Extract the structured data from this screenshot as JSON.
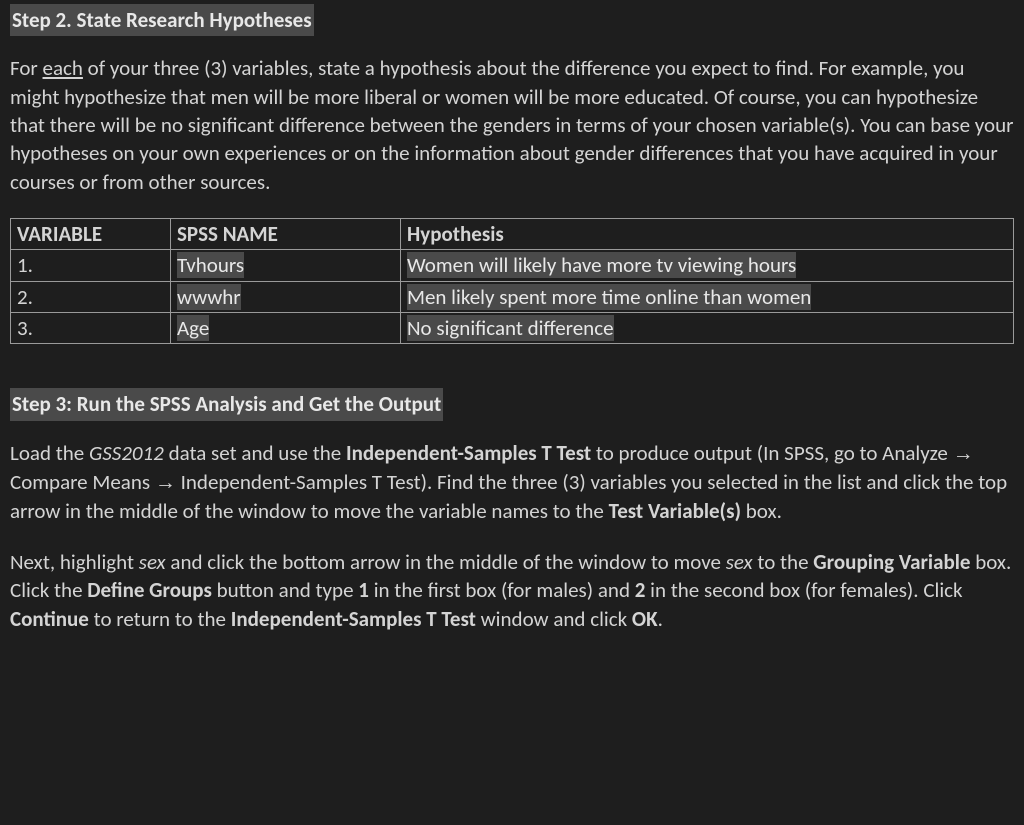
{
  "step2": {
    "heading": "Step 2. State Research Hypotheses",
    "para_pre": "For ",
    "para_each": "each",
    "para_post": " of your three (3) variables, state a hypothesis about the difference you expect to find. For example, you might hypothesize that men will be more liberal or women will be more educated.  Of course, you can hypothesize that there will be no significant difference between the genders in terms of your chosen variable(s).  You can base your hypotheses on your own experiences or on the information about gender differences that you have acquired in your courses or from other sources."
  },
  "table": {
    "headers": {
      "variable": "VARIABLE",
      "spss": "SPSS NAME",
      "hyp": "Hypothesis"
    },
    "rows": [
      {
        "n": "1.",
        "spss": "Tvhours",
        "hyp": "Women will likely have more tv viewing hours"
      },
      {
        "n": "2.",
        "spss": "wwwhr",
        "hyp": "Men likely spent more time online than women"
      },
      {
        "n": "3.",
        "spss": "Age",
        "hyp": "No significant difference"
      }
    ]
  },
  "step3": {
    "heading": "Step 3: Run the SPSS Analysis and Get the Output",
    "p1_a": "Load the ",
    "p1_gss": "GSS2012",
    "p1_b": " data set and use the ",
    "p1_isttest": "Independent-Samples T Test",
    "p1_c": " to produce output (In SPSS, go to Analyze ",
    "arrow": "→",
    "p1_d": " Compare Means ",
    "p1_e": " Independent-Samples T Test).  Find the three (3) variables you selected in the list and click the top arrow in the middle of the window to move the variable names to the ",
    "p1_testvars": "Test Variable(s)",
    "p1_f": " box.",
    "p2_a": "Next, highlight ",
    "p2_sex": "sex",
    "p2_b": " and click the bottom arrow in the middle of the window to move ",
    "p2_c": " to the ",
    "p2_groupvar": "Grouping Variable",
    "p2_d": " box. Click the ",
    "p2_define": "Define Groups",
    "p2_e": " button and type ",
    "p2_one": "1",
    "p2_f": " in the first box (for males) and ",
    "p2_two": "2",
    "p2_g": " in the second box (for females). Click ",
    "p2_continue": "Continue",
    "p2_h": " to return to the ",
    "p2_isttest": "Independent-Samples T Test",
    "p2_i": " window and click ",
    "p2_ok": "OK",
    "p2_j": "."
  }
}
